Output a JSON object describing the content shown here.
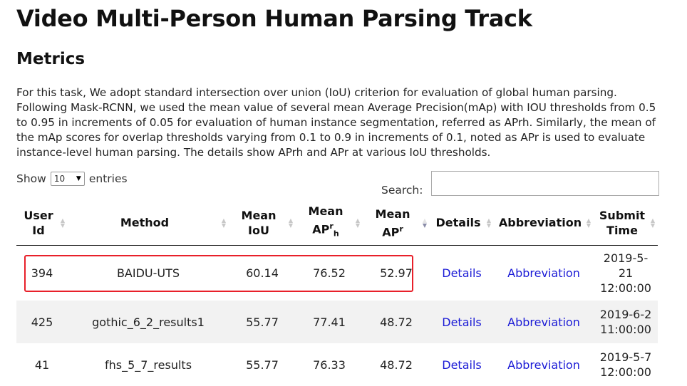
{
  "page": {
    "title": "Video Multi-Person Human Parsing Track",
    "section": "Metrics",
    "description": "For this task, We adopt standard intersection over union (IoU) criterion for evaluation of global human parsing. Following Mask-RCNN, we used the mean value of several mean Average Precision(mAp) with IOU thresholds from 0.5 to 0.95 in increments of 0.05 for evaluation of human instance segmentation, referred as APrh. Similarly, the mean of the mAp scores for overlap thresholds varying from 0.1 to 0.9 in increments of 0.1, noted as APr is used to evaluate instance-level human parsing. The details show APrh and APr at various IoU thresholds."
  },
  "table_controls": {
    "show_label": "Show",
    "entries_value": "10",
    "entries_label": "entries",
    "search_label": "Search:",
    "search_value": ""
  },
  "columns": {
    "user_id": [
      "User",
      "Id"
    ],
    "method": "Method",
    "mean_iou": [
      "Mean",
      "IoU"
    ],
    "mean_aprh": {
      "line1": "Mean",
      "base": "AP",
      "sup": "r",
      "sub": "h"
    },
    "mean_apr": {
      "line1": "Mean",
      "base": "AP",
      "sup": "r"
    },
    "details": "Details",
    "abbreviation": "Abbreviation",
    "submit_time": [
      "Submit",
      "Time"
    ]
  },
  "rows": [
    {
      "user_id": "394",
      "method": "BAIDU-UTS",
      "mean_iou": "60.14",
      "mean_aprh": "76.52",
      "mean_apr": "52.97",
      "details": "Details",
      "abbreviation": "Abbreviation",
      "submit_time": [
        "2019-5-",
        "21",
        "12:00:00"
      ]
    },
    {
      "user_id": "425",
      "method": "gothic_6_2_results1",
      "mean_iou": "55.77",
      "mean_aprh": "77.41",
      "mean_apr": "48.72",
      "details": "Details",
      "abbreviation": "Abbreviation",
      "submit_time": [
        "2019-6-2",
        "11:00:00"
      ]
    },
    {
      "user_id": "41",
      "method": "fhs_5_7_results",
      "mean_iou": "55.77",
      "mean_aprh": "76.33",
      "mean_apr": "48.72",
      "details": "Details",
      "abbreviation": "Abbreviation",
      "submit_time": [
        "2019-5-7",
        "12:00:00"
      ]
    }
  ],
  "colors": {
    "link": "#1a1ad6",
    "highlight_border": "#e8202a",
    "striped_row": "#f2f2f2"
  }
}
